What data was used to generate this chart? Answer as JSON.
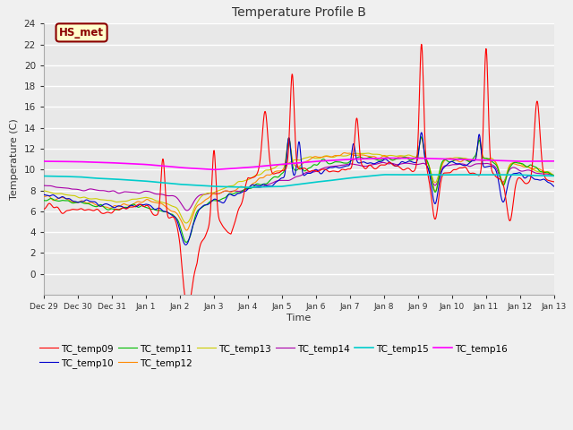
{
  "title": "Temperature Profile B",
  "xlabel": "Time",
  "ylabel": "Temperature (C)",
  "ylim": [
    -2,
    24
  ],
  "yticks": [
    0,
    2,
    4,
    6,
    8,
    10,
    12,
    14,
    16,
    18,
    20,
    22,
    24
  ],
  "annotation_text": "HS_met",
  "annotation_bg": "#ffffcc",
  "annotation_border": "#8B0000",
  "series_colors": {
    "TC_temp09": "#ff0000",
    "TC_temp10": "#0000cc",
    "TC_temp11": "#00bb00",
    "TC_temp12": "#ff8800",
    "TC_temp13": "#cccc00",
    "TC_temp14": "#aa00aa",
    "TC_temp15": "#00cccc",
    "TC_temp16": "#ff00ff"
  },
  "x_tick_labels": [
    "Dec 29",
    "Dec 30",
    "Dec 31",
    "Jan 1",
    "Jan 2",
    "Jan 3",
    "Jan 4",
    "Jan 5",
    "Jan 6",
    "Jan 7",
    "Jan 8",
    "Jan 9",
    "Jan 10",
    "Jan 11",
    "Jan 12",
    "Jan 13"
  ]
}
